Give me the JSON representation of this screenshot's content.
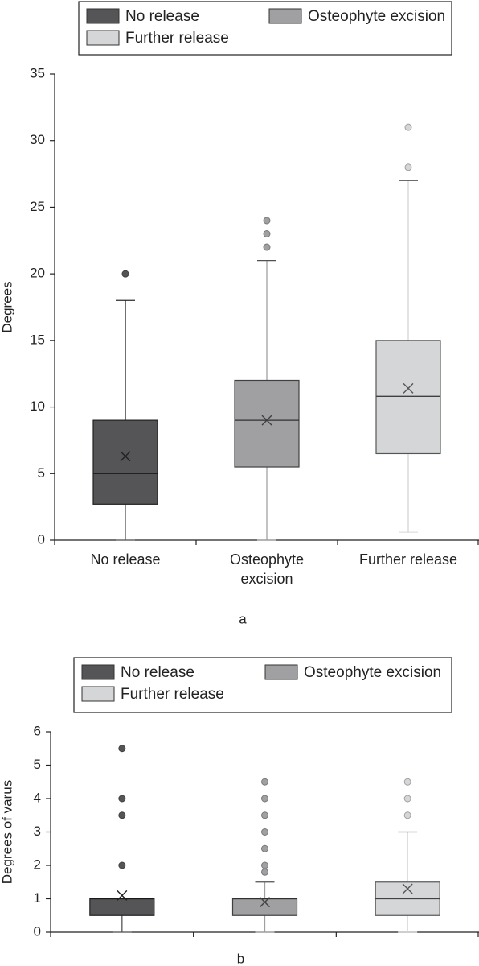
{
  "chart_data": [
    {
      "type": "box",
      "ylabel": "Degrees",
      "caption": "a",
      "categories": [
        "No release",
        "Osteophyte excision",
        "Further release"
      ],
      "ylim": [
        0,
        35
      ],
      "yticks": [
        0,
        5,
        10,
        15,
        20,
        25,
        30,
        35
      ],
      "series": [
        {
          "name": "No release",
          "color": "#555557",
          "min": 0,
          "q1": 2.7,
          "median": 5,
          "q3": 9,
          "max": 18,
          "mean": 6.3,
          "outliers": [
            20
          ]
        },
        {
          "name": "Osteophyte excision",
          "color": "#a0a0a3",
          "min": 0,
          "q1": 5.5,
          "median": 9,
          "q3": 12,
          "max": 21,
          "mean": 9,
          "outliers": [
            22,
            23,
            24
          ]
        },
        {
          "name": "Further release",
          "color": "#d5d6d8",
          "min": 0.6,
          "q1": 6.5,
          "median": 10.8,
          "q3": 15,
          "max": 27,
          "mean": 11.4,
          "outliers": [
            28,
            31
          ]
        }
      ]
    },
    {
      "type": "box",
      "ylabel": "Degrees of varus",
      "caption": "b",
      "ylim": [
        0,
        6
      ],
      "yticks": [
        0,
        1,
        2,
        3,
        4,
        5,
        6
      ],
      "series": [
        {
          "name": "No release",
          "color": "#555557",
          "min": 0,
          "q1": 0.5,
          "median": 1,
          "q3": 1,
          "max": 1,
          "mean": 1.1,
          "outliers": [
            2,
            3.5,
            4,
            5.5
          ]
        },
        {
          "name": "Osteophyte excision",
          "color": "#a0a0a3",
          "min": 0,
          "q1": 0.5,
          "median": 1,
          "q3": 1,
          "max": 1.5,
          "mean": 0.9,
          "outliers": [
            1.8,
            2,
            2.5,
            3,
            3.5,
            4,
            4.5
          ]
        },
        {
          "name": "Further release",
          "color": "#d5d6d8",
          "min": 0,
          "q1": 0.5,
          "median": 1,
          "q3": 1.5,
          "max": 3,
          "mean": 1.3,
          "outliers": [
            3.5,
            4,
            4.5
          ]
        }
      ]
    }
  ]
}
